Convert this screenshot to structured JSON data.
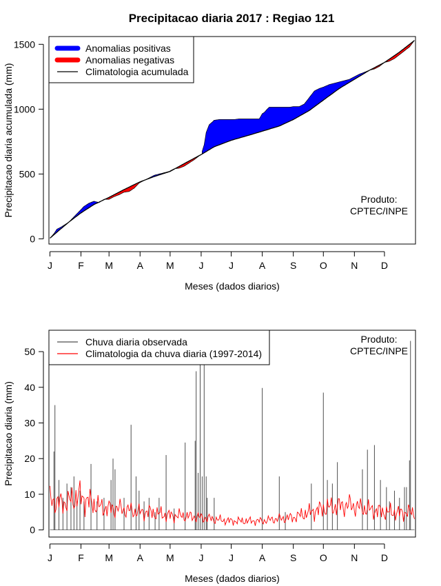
{
  "figure": {
    "title": "Precipitacao diaria 2017 : Regiao 121"
  },
  "chart_data": [
    {
      "type": "area",
      "xlabel": "Meses (dados diarios)",
      "ylabel": "Precipitacao diaria acumulada (mm)",
      "xlim": [
        0,
        366
      ],
      "ylim": [
        -40,
        1560
      ],
      "month_ticks": [
        "J",
        "F",
        "M",
        "A",
        "M",
        "J",
        "J",
        "A",
        "S",
        "O",
        "N",
        "D"
      ],
      "month_start_days": [
        1,
        32,
        60,
        91,
        121,
        152,
        182,
        213,
        244,
        274,
        305,
        335
      ],
      "y_ticks": [
        0,
        500,
        1000,
        1500
      ],
      "legend": [
        {
          "label": "Anomalias positivas",
          "color": "#0000ff",
          "style": "thick"
        },
        {
          "label": "Anomalias negativas",
          "color": "#ff0000",
          "style": "thick"
        },
        {
          "label": "Climatologia acumulada",
          "color": "#000000",
          "style": "line"
        }
      ],
      "annotation": [
        "Produto:",
        "CPTEC/INPE"
      ],
      "climatology_cumulative": {
        "days": [
          1,
          10,
          20,
          32,
          45,
          60,
          75,
          91,
          105,
          121,
          135,
          152,
          165,
          182,
          200,
          213,
          230,
          244,
          260,
          274,
          290,
          305,
          320,
          335,
          350,
          365
        ],
        "values": [
          5,
          65,
          130,
          200,
          265,
          320,
          380,
          440,
          480,
          520,
          580,
          650,
          710,
          760,
          800,
          830,
          870,
          920,
          990,
          1070,
          1160,
          1230,
          1300,
          1360,
          1440,
          1530
        ]
      },
      "observed_cumulative": {
        "days": [
          1,
          5,
          8,
          12,
          20,
          25,
          30,
          35,
          40,
          45,
          50,
          55,
          60,
          65,
          70,
          75,
          80,
          85,
          90,
          95,
          100,
          105,
          110,
          115,
          120,
          125,
          130,
          135,
          140,
          145,
          150,
          152,
          155,
          157,
          160,
          163,
          165,
          170,
          175,
          180,
          185,
          190,
          195,
          200,
          205,
          210,
          213,
          215,
          218,
          220,
          225,
          230,
          235,
          240,
          244,
          250,
          255,
          260,
          265,
          270,
          274,
          280,
          285,
          290,
          295,
          300,
          305,
          310,
          315,
          320,
          325,
          330,
          335,
          340,
          345,
          350,
          355,
          360,
          365
        ],
        "values": [
          5,
          40,
          75,
          90,
          130,
          170,
          210,
          250,
          275,
          290,
          280,
          305,
          305,
          325,
          340,
          360,
          365,
          390,
          430,
          450,
          470,
          490,
          500,
          510,
          520,
          540,
          545,
          560,
          585,
          610,
          640,
          650,
          725,
          820,
          880,
          900,
          915,
          920,
          920,
          920,
          920,
          925,
          925,
          925,
          925,
          925,
          965,
          975,
          1000,
          1015,
          1015,
          1015,
          1015,
          1015,
          1020,
          1020,
          1040,
          1090,
          1140,
          1160,
          1170,
          1190,
          1200,
          1210,
          1220,
          1230,
          1250,
          1270,
          1285,
          1300,
          1310,
          1330,
          1360,
          1370,
          1390,
          1420,
          1450,
          1480,
          1530
        ]
      }
    },
    {
      "type": "bar",
      "xlabel": "Meses (dados diarios)",
      "ylabel": "Precipitacao diaria (mm)",
      "xlim": [
        0,
        366
      ],
      "ylim": [
        -2,
        56
      ],
      "month_ticks": [
        "J",
        "F",
        "M",
        "A",
        "M",
        "J",
        "J",
        "A",
        "S",
        "O",
        "N",
        "D"
      ],
      "month_start_days": [
        1,
        32,
        60,
        91,
        121,
        152,
        182,
        213,
        244,
        274,
        305,
        335
      ],
      "y_ticks": [
        0,
        10,
        20,
        30,
        40,
        50
      ],
      "legend": [
        {
          "label": "Chuva diaria observada",
          "color": "#4d4d4d",
          "style": "line"
        },
        {
          "label": "Climatologia da chuva diaria (1997-2014)",
          "color": "#ff0000",
          "style": "line"
        }
      ],
      "annotation": [
        "Produto:",
        "CPTEC/INPE"
      ],
      "observed_daily": [
        [
          5,
          22
        ],
        [
          6,
          35
        ],
        [
          10,
          14
        ],
        [
          14,
          9
        ],
        [
          18,
          13
        ],
        [
          22,
          12
        ],
        [
          25,
          15
        ],
        [
          28,
          8
        ],
        [
          31,
          11
        ],
        [
          35,
          8
        ],
        [
          42,
          18.5
        ],
        [
          48,
          8
        ],
        [
          55,
          9
        ],
        [
          62,
          14
        ],
        [
          64,
          20
        ],
        [
          66,
          17
        ],
        [
          75,
          9
        ],
        [
          82,
          29.5
        ],
        [
          87,
          15
        ],
        [
          90,
          11
        ],
        [
          95,
          8
        ],
        [
          100,
          9
        ],
        [
          106,
          5
        ],
        [
          110,
          9
        ],
        [
          117,
          21
        ],
        [
          125,
          6
        ],
        [
          136,
          24.5
        ],
        [
          146,
          25
        ],
        [
          147,
          44.5
        ],
        [
          149,
          16
        ],
        [
          151,
          47
        ],
        [
          153,
          15
        ],
        [
          155,
          47
        ],
        [
          157,
          15
        ],
        [
          158,
          9
        ],
        [
          165,
          9
        ],
        [
          213,
          39.8
        ],
        [
          230,
          15
        ],
        [
          236,
          5
        ],
        [
          262,
          13
        ],
        [
          274,
          38.5
        ],
        [
          278,
          14
        ],
        [
          283,
          13
        ],
        [
          288,
          19
        ],
        [
          313,
          17
        ],
        [
          318,
          22.5
        ],
        [
          325,
          23.8
        ],
        [
          331,
          14
        ],
        [
          337,
          12
        ],
        [
          340,
          8
        ],
        [
          345,
          11
        ],
        [
          350,
          9
        ],
        [
          355,
          12
        ],
        [
          357,
          12
        ],
        [
          360,
          19.5
        ],
        [
          361,
          53
        ]
      ],
      "climatology_daily": {
        "days": [
          1,
          10,
          20,
          30,
          40,
          50,
          60,
          70,
          80,
          91,
          100,
          110,
          121,
          130,
          140,
          152,
          165,
          180,
          195,
          213,
          225,
          244,
          255,
          274,
          285,
          300,
          315,
          335,
          350,
          365
        ],
        "values": [
          8.5,
          7.5,
          8,
          9.5,
          8,
          6.5,
          6,
          6,
          5.5,
          5,
          5,
          4.5,
          4,
          4,
          3.8,
          3.5,
          3,
          2.5,
          2.5,
          2.5,
          3,
          3.5,
          4.5,
          6,
          6.5,
          7,
          6,
          5,
          4.8,
          5
        ]
      }
    }
  ]
}
